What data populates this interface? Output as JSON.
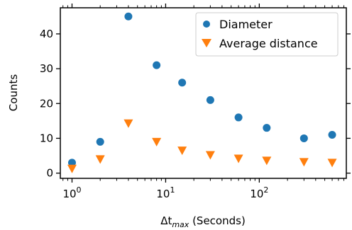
{
  "chart_data": {
    "type": "scatter",
    "title": "",
    "xlabel_main": "Δt",
    "xlabel_sub": "max",
    "xlabel_rest": " (Seconds)",
    "ylabel": "Counts",
    "xscale": "log",
    "xlim": [
      0.75,
      850
    ],
    "ylim": [
      -1.5,
      47.5
    ],
    "grid": false,
    "legend_position": "top-right",
    "x_ticks": [
      {
        "value": 1,
        "base": "10",
        "exp": "0"
      },
      {
        "value": 10,
        "base": "10",
        "exp": "1"
      },
      {
        "value": 100,
        "base": "10",
        "exp": "2"
      }
    ],
    "y_ticks": [
      0,
      10,
      20,
      30,
      40
    ],
    "series": [
      {
        "name": "Diameter",
        "marker": "circle",
        "color": "#1f77b4",
        "points": [
          {
            "x": 1,
            "y": 3
          },
          {
            "x": 2,
            "y": 9
          },
          {
            "x": 4,
            "y": 45
          },
          {
            "x": 8,
            "y": 31
          },
          {
            "x": 15,
            "y": 26
          },
          {
            "x": 30,
            "y": 21
          },
          {
            "x": 60,
            "y": 16
          },
          {
            "x": 120,
            "y": 13
          },
          {
            "x": 300,
            "y": 10
          },
          {
            "x": 600,
            "y": 11
          }
        ]
      },
      {
        "name": "Average distance",
        "marker": "triangle-down",
        "color": "#ff7f0e",
        "points": [
          {
            "x": 1,
            "y": 1.3
          },
          {
            "x": 2,
            "y": 4.0
          },
          {
            "x": 4,
            "y": 14.3
          },
          {
            "x": 8,
            "y": 9.0
          },
          {
            "x": 15,
            "y": 6.5
          },
          {
            "x": 30,
            "y": 5.2
          },
          {
            "x": 60,
            "y": 4.2
          },
          {
            "x": 120,
            "y": 3.6
          },
          {
            "x": 300,
            "y": 3.2
          },
          {
            "x": 600,
            "y": 3.0
          }
        ]
      }
    ]
  }
}
